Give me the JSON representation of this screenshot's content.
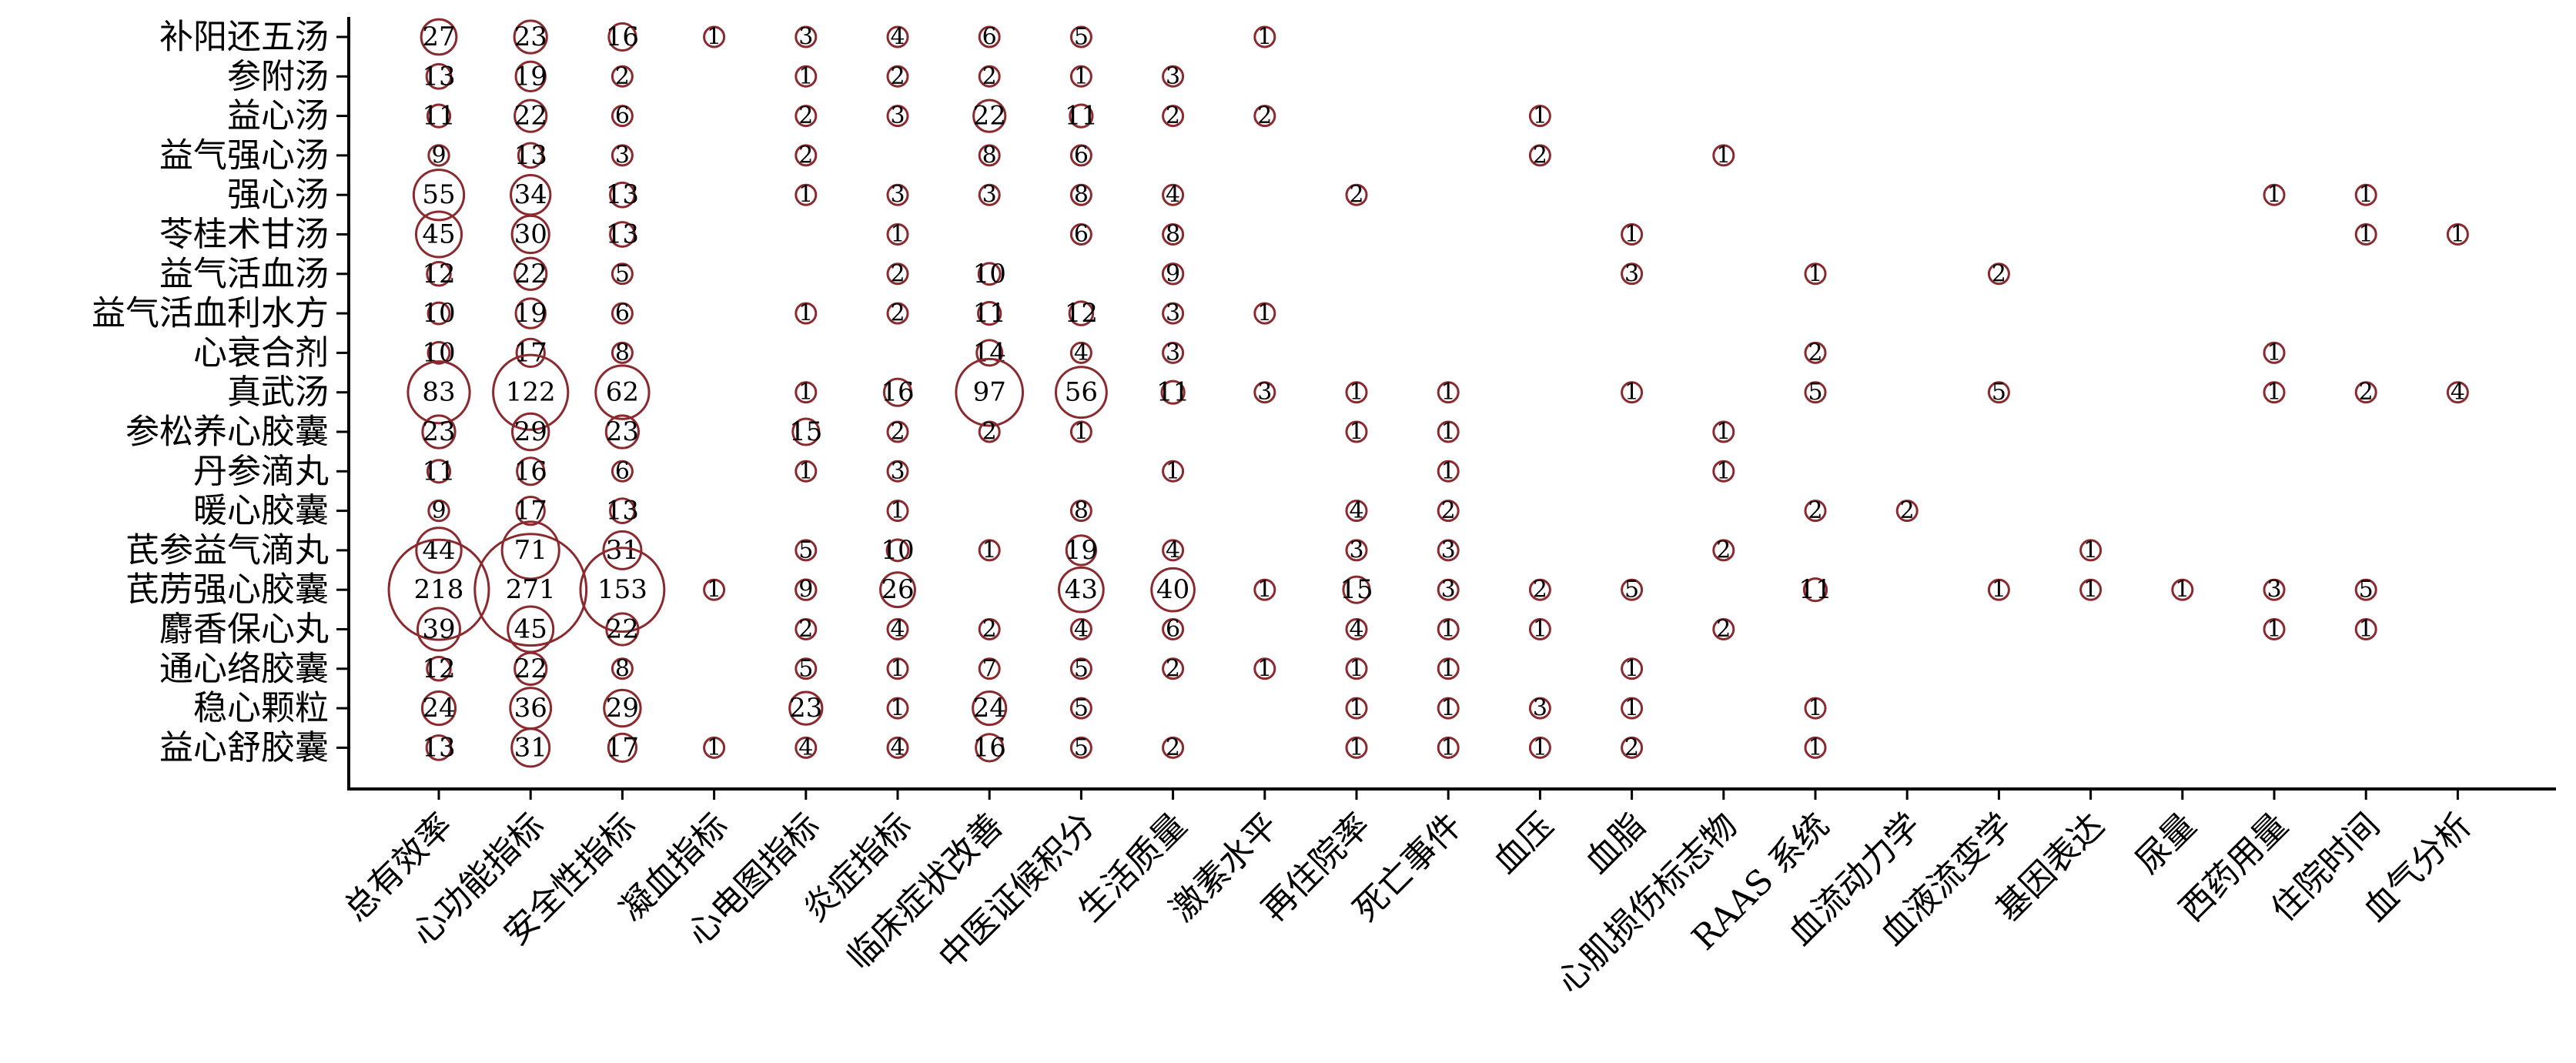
{
  "chart_data": {
    "type": "bubble",
    "title": "",
    "xlabel": "",
    "ylabel": "",
    "bubble_color": "#8b2a2e",
    "grid": false,
    "legend": "none",
    "y_categories": [
      "补阳还五汤",
      "参附汤",
      "益心汤",
      "益气强心汤",
      "强心汤",
      "苓桂术甘汤",
      "益气活血汤",
      "益气活血利水方",
      "心衰合剂",
      "真武汤",
      "参松养心胶囊",
      "丹参滴丸",
      "暖心胶囊",
      "芪参益气滴丸",
      "芪苈强心胶囊",
      "麝香保心丸",
      "通心络胶囊",
      "稳心颗粒",
      "益心舒胶囊"
    ],
    "x_categories": [
      "总有效率",
      "心功能指标",
      "安全性指标",
      "凝血指标",
      "心电图指标",
      "炎症指标",
      "临床症状改善",
      "中医证候积分",
      "生活质量",
      "激素水平",
      "再住院率",
      "死亡事件",
      "血压",
      "血脂",
      "心肌损伤标志物",
      "RAAS 系统",
      "血流动力学",
      "血液流变学",
      "基因表达",
      "尿量",
      "西药用量",
      "住院时间",
      "血气分析"
    ],
    "points": [
      [
        0,
        0,
        27
      ],
      [
        0,
        1,
        23
      ],
      [
        0,
        2,
        16
      ],
      [
        0,
        3,
        1
      ],
      [
        0,
        4,
        3
      ],
      [
        0,
        5,
        4
      ],
      [
        0,
        6,
        6
      ],
      [
        0,
        7,
        5
      ],
      [
        0,
        9,
        1
      ],
      [
        1,
        0,
        13
      ],
      [
        1,
        1,
        19
      ],
      [
        1,
        2,
        2
      ],
      [
        1,
        4,
        1
      ],
      [
        1,
        5,
        2
      ],
      [
        1,
        6,
        2
      ],
      [
        1,
        7,
        1
      ],
      [
        1,
        8,
        3
      ],
      [
        2,
        0,
        11
      ],
      [
        2,
        1,
        22
      ],
      [
        2,
        2,
        6
      ],
      [
        2,
        4,
        2
      ],
      [
        2,
        5,
        3
      ],
      [
        2,
        6,
        22
      ],
      [
        2,
        7,
        11
      ],
      [
        2,
        8,
        2
      ],
      [
        2,
        9,
        2
      ],
      [
        2,
        12,
        1
      ],
      [
        3,
        0,
        9
      ],
      [
        3,
        1,
        13
      ],
      [
        3,
        2,
        3
      ],
      [
        3,
        4,
        2
      ],
      [
        3,
        6,
        8
      ],
      [
        3,
        7,
        6
      ],
      [
        3,
        12,
        2
      ],
      [
        3,
        14,
        1
      ],
      [
        4,
        0,
        55
      ],
      [
        4,
        1,
        34
      ],
      [
        4,
        2,
        13
      ],
      [
        4,
        4,
        1
      ],
      [
        4,
        5,
        3
      ],
      [
        4,
        6,
        3
      ],
      [
        4,
        7,
        8
      ],
      [
        4,
        8,
        4
      ],
      [
        4,
        10,
        2
      ],
      [
        4,
        20,
        1
      ],
      [
        4,
        21,
        1
      ],
      [
        5,
        0,
        45
      ],
      [
        5,
        1,
        30
      ],
      [
        5,
        2,
        13
      ],
      [
        5,
        5,
        1
      ],
      [
        5,
        7,
        6
      ],
      [
        5,
        8,
        8
      ],
      [
        5,
        13,
        1
      ],
      [
        5,
        21,
        1
      ],
      [
        5,
        22,
        1
      ],
      [
        6,
        0,
        12
      ],
      [
        6,
        1,
        22
      ],
      [
        6,
        2,
        5
      ],
      [
        6,
        5,
        2
      ],
      [
        6,
        6,
        10
      ],
      [
        6,
        8,
        9
      ],
      [
        6,
        13,
        3
      ],
      [
        6,
        15,
        1
      ],
      [
        6,
        17,
        2
      ],
      [
        7,
        0,
        10
      ],
      [
        7,
        1,
        19
      ],
      [
        7,
        2,
        6
      ],
      [
        7,
        4,
        1
      ],
      [
        7,
        5,
        2
      ],
      [
        7,
        6,
        11
      ],
      [
        7,
        7,
        12
      ],
      [
        7,
        8,
        3
      ],
      [
        7,
        9,
        1
      ],
      [
        8,
        0,
        10
      ],
      [
        8,
        1,
        17
      ],
      [
        8,
        2,
        8
      ],
      [
        8,
        6,
        14
      ],
      [
        8,
        7,
        4
      ],
      [
        8,
        8,
        3
      ],
      [
        8,
        15,
        2
      ],
      [
        8,
        20,
        1
      ],
      [
        9,
        0,
        83
      ],
      [
        9,
        1,
        122
      ],
      [
        9,
        2,
        62
      ],
      [
        9,
        4,
        1
      ],
      [
        9,
        5,
        16
      ],
      [
        9,
        6,
        97
      ],
      [
        9,
        7,
        56
      ],
      [
        9,
        8,
        11
      ],
      [
        9,
        9,
        3
      ],
      [
        9,
        10,
        1
      ],
      [
        9,
        11,
        1
      ],
      [
        9,
        13,
        1
      ],
      [
        9,
        15,
        5
      ],
      [
        9,
        17,
        5
      ],
      [
        9,
        20,
        1
      ],
      [
        9,
        21,
        2
      ],
      [
        9,
        22,
        4
      ],
      [
        10,
        0,
        23
      ],
      [
        10,
        1,
        29
      ],
      [
        10,
        2,
        23
      ],
      [
        10,
        4,
        15
      ],
      [
        10,
        5,
        2
      ],
      [
        10,
        6,
        2
      ],
      [
        10,
        7,
        1
      ],
      [
        10,
        10,
        1
      ],
      [
        10,
        11,
        1
      ],
      [
        10,
        14,
        1
      ],
      [
        11,
        0,
        11
      ],
      [
        11,
        1,
        16
      ],
      [
        11,
        2,
        6
      ],
      [
        11,
        4,
        1
      ],
      [
        11,
        5,
        3
      ],
      [
        11,
        8,
        1
      ],
      [
        11,
        11,
        1
      ],
      [
        11,
        14,
        1
      ],
      [
        12,
        0,
        9
      ],
      [
        12,
        1,
        17
      ],
      [
        12,
        2,
        13
      ],
      [
        12,
        5,
        1
      ],
      [
        12,
        7,
        8
      ],
      [
        12,
        10,
        4
      ],
      [
        12,
        11,
        2
      ],
      [
        12,
        15,
        2
      ],
      [
        12,
        16,
        2
      ],
      [
        13,
        0,
        44
      ],
      [
        13,
        1,
        71
      ],
      [
        13,
        2,
        31
      ],
      [
        13,
        4,
        5
      ],
      [
        13,
        5,
        10
      ],
      [
        13,
        6,
        1
      ],
      [
        13,
        7,
        19
      ],
      [
        13,
        8,
        4
      ],
      [
        13,
        10,
        3
      ],
      [
        13,
        11,
        3
      ],
      [
        13,
        14,
        2
      ],
      [
        13,
        18,
        1
      ],
      [
        14,
        0,
        218
      ],
      [
        14,
        1,
        271
      ],
      [
        14,
        2,
        153
      ],
      [
        14,
        3,
        1
      ],
      [
        14,
        4,
        9
      ],
      [
        14,
        5,
        26
      ],
      [
        14,
        7,
        43
      ],
      [
        14,
        8,
        40
      ],
      [
        14,
        9,
        1
      ],
      [
        14,
        10,
        15
      ],
      [
        14,
        11,
        3
      ],
      [
        14,
        12,
        2
      ],
      [
        14,
        13,
        5
      ],
      [
        14,
        15,
        11
      ],
      [
        14,
        17,
        1
      ],
      [
        14,
        18,
        1
      ],
      [
        14,
        19,
        1
      ],
      [
        14,
        20,
        3
      ],
      [
        14,
        21,
        5
      ],
      [
        15,
        0,
        39
      ],
      [
        15,
        1,
        45
      ],
      [
        15,
        2,
        22
      ],
      [
        15,
        4,
        2
      ],
      [
        15,
        5,
        4
      ],
      [
        15,
        6,
        2
      ],
      [
        15,
        7,
        4
      ],
      [
        15,
        8,
        6
      ],
      [
        15,
        10,
        4
      ],
      [
        15,
        11,
        1
      ],
      [
        15,
        12,
        1
      ],
      [
        15,
        14,
        2
      ],
      [
        15,
        20,
        1
      ],
      [
        15,
        21,
        1
      ],
      [
        16,
        0,
        12
      ],
      [
        16,
        1,
        22
      ],
      [
        16,
        2,
        8
      ],
      [
        16,
        4,
        5
      ],
      [
        16,
        5,
        1
      ],
      [
        16,
        6,
        7
      ],
      [
        16,
        7,
        5
      ],
      [
        16,
        8,
        2
      ],
      [
        16,
        9,
        1
      ],
      [
        16,
        10,
        1
      ],
      [
        16,
        11,
        1
      ],
      [
        16,
        13,
        1
      ],
      [
        17,
        0,
        24
      ],
      [
        17,
        1,
        36
      ],
      [
        17,
        2,
        29
      ],
      [
        17,
        4,
        23
      ],
      [
        17,
        5,
        1
      ],
      [
        17,
        6,
        24
      ],
      [
        17,
        7,
        5
      ],
      [
        17,
        10,
        1
      ],
      [
        17,
        11,
        1
      ],
      [
        17,
        12,
        3
      ],
      [
        17,
        13,
        1
      ],
      [
        17,
        15,
        1
      ],
      [
        18,
        0,
        13
      ],
      [
        18,
        1,
        31
      ],
      [
        18,
        2,
        17
      ],
      [
        18,
        3,
        1
      ],
      [
        18,
        4,
        4
      ],
      [
        18,
        5,
        4
      ],
      [
        18,
        6,
        16
      ],
      [
        18,
        7,
        5
      ],
      [
        18,
        8,
        2
      ],
      [
        18,
        10,
        1
      ],
      [
        18,
        11,
        1
      ],
      [
        18,
        12,
        1
      ],
      [
        18,
        13,
        2
      ],
      [
        18,
        15,
        1
      ]
    ]
  }
}
